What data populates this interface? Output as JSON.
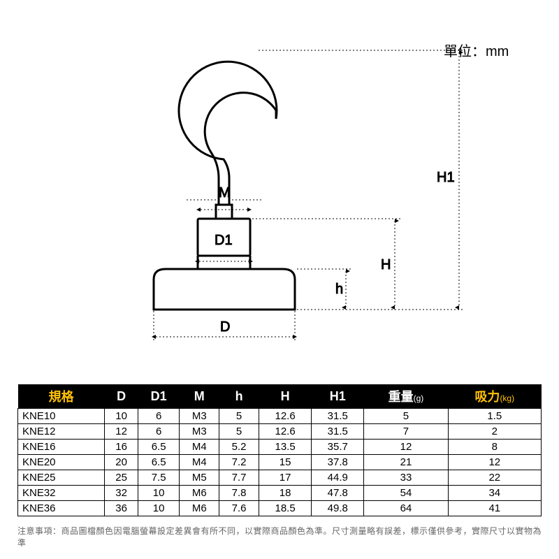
{
  "unit_label": "單位：mm",
  "diagram": {
    "type": "engineering-diagram",
    "labels": {
      "D": "D",
      "D1": "D1",
      "M": "M",
      "h": "h",
      "H": "H",
      "H1": "H1"
    },
    "stroke_color": "#000000",
    "stroke_width_outline": 3,
    "stroke_width_dim": 1,
    "dim_dash": "2 3",
    "arrow_size": 7,
    "background_color": "#ffffff"
  },
  "table": {
    "type": "table",
    "header_bg": "#000000",
    "header_fg": "#ffffff",
    "accent_fg": "#ffc107",
    "border_color": "#000000",
    "columns": [
      {
        "key": "spec",
        "label": "規格",
        "accent": true
      },
      {
        "key": "D",
        "label": "D"
      },
      {
        "key": "D1",
        "label": "D1"
      },
      {
        "key": "M",
        "label": "M"
      },
      {
        "key": "h",
        "label": "h"
      },
      {
        "key": "H",
        "label": "H"
      },
      {
        "key": "H1",
        "label": "H1"
      },
      {
        "key": "weight",
        "label": "重量",
        "unit": "(g)"
      },
      {
        "key": "pull",
        "label": "吸力",
        "unit": "(kg)",
        "accent": true
      }
    ],
    "rows": [
      {
        "spec": "KNE10",
        "D": "10",
        "D1": "6",
        "M": "M3",
        "h": "5",
        "H": "12.6",
        "H1": "31.5",
        "weight": "5",
        "pull": "1.5"
      },
      {
        "spec": "KNE12",
        "D": "12",
        "D1": "6",
        "M": "M3",
        "h": "5",
        "H": "12.6",
        "H1": "31.5",
        "weight": "7",
        "pull": "2"
      },
      {
        "spec": "KNE16",
        "D": "16",
        "D1": "6.5",
        "M": "M4",
        "h": "5.2",
        "H": "13.5",
        "H1": "35.7",
        "weight": "12",
        "pull": "8"
      },
      {
        "spec": "KNE20",
        "D": "20",
        "D1": "6.5",
        "M": "M4",
        "h": "7.2",
        "H": "15",
        "H1": "37.8",
        "weight": "21",
        "pull": "12"
      },
      {
        "spec": "KNE25",
        "D": "25",
        "D1": "7.5",
        "M": "M5",
        "h": "7.7",
        "H": "17",
        "H1": "44.9",
        "weight": "33",
        "pull": "22"
      },
      {
        "spec": "KNE32",
        "D": "32",
        "D1": "10",
        "M": "M6",
        "h": "7.8",
        "H": "18",
        "H1": "47.8",
        "weight": "54",
        "pull": "34"
      },
      {
        "spec": "KNE36",
        "D": "36",
        "D1": "10",
        "M": "M6",
        "h": "7.6",
        "H": "18.5",
        "H1": "49.8",
        "weight": "64",
        "pull": "41"
      }
    ]
  },
  "footnote": "注意事項：商品圖檔顏色因電腦螢幕設定差異會有所不同，以實際商品顏色為準。尺寸測量略有誤差，標示僅供參考，實際尺寸以實物為準"
}
